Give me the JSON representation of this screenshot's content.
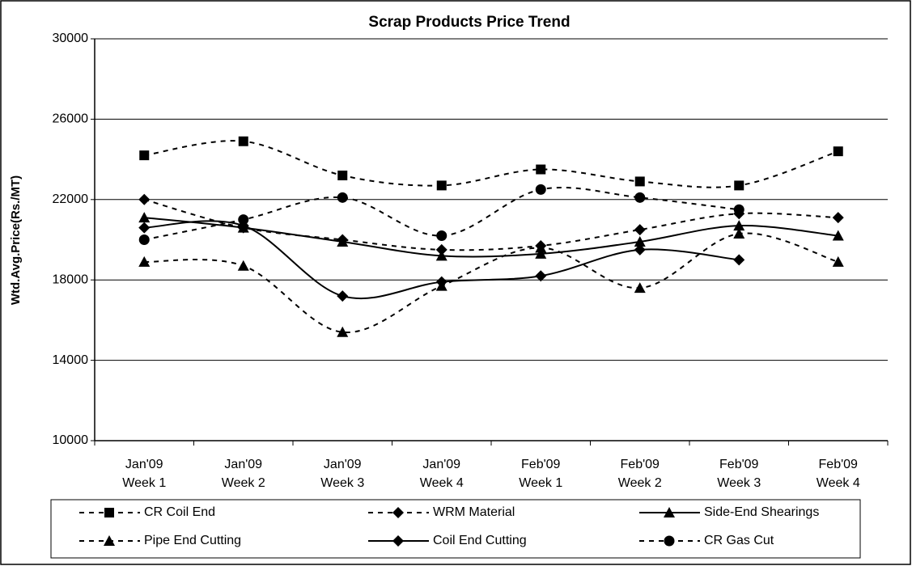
{
  "chart_data": {
    "type": "line",
    "title": "Scrap Products Price Trend",
    "y_label": "Wtd.Avg.Price(Rs./MT)",
    "categories": [
      [
        "Jan'09",
        "Week 1"
      ],
      [
        "Jan'09",
        "Week 2"
      ],
      [
        "Jan'09",
        "Week 3"
      ],
      [
        "Jan'09",
        "Week 4"
      ],
      [
        "Feb'09",
        "Week 1"
      ],
      [
        "Feb'09",
        "Week 2"
      ],
      [
        "Feb'09",
        "Week 3"
      ],
      [
        "Feb'09",
        "Week 4"
      ]
    ],
    "series": [
      {
        "name": "CR Coil End",
        "color": "#000000",
        "dash": true,
        "marker": "square",
        "values": [
          24200,
          24900,
          23200,
          22700,
          23500,
          22900,
          22700,
          24400
        ]
      },
      {
        "name": "WRM Material",
        "color": "#000000",
        "dash": true,
        "marker": "diamond",
        "values": [
          22000,
          20600,
          20000,
          19500,
          19700,
          20500,
          21300,
          21100
        ]
      },
      {
        "name": "Side-End Shearings",
        "color": "#000000",
        "dash": false,
        "marker": "triangle",
        "values": [
          21100,
          20600,
          19900,
          19200,
          19300,
          19900,
          20700,
          20200
        ]
      },
      {
        "name": "Pipe End Cutting",
        "color": "#000000",
        "dash": true,
        "marker": "triangle",
        "values": [
          18900,
          18700,
          15400,
          17700,
          19600,
          17600,
          20300,
          18900
        ]
      },
      {
        "name": "Coil End Cutting",
        "color": "#000000",
        "dash": false,
        "marker": "diamond",
        "values": [
          20600,
          20700,
          17200,
          17900,
          18200,
          19500,
          19000,
          null
        ]
      },
      {
        "name": "CR Gas Cut",
        "color": "#000000",
        "dash": true,
        "marker": "circle",
        "values": [
          20000,
          21000,
          22100,
          20200,
          22500,
          22100,
          21500,
          null
        ]
      }
    ],
    "ylim": [
      10000,
      30000
    ],
    "yticks": [
      10000,
      14000,
      18000,
      22000,
      26000,
      30000
    ],
    "grid": true,
    "smooth": true,
    "legend": "bottom"
  }
}
